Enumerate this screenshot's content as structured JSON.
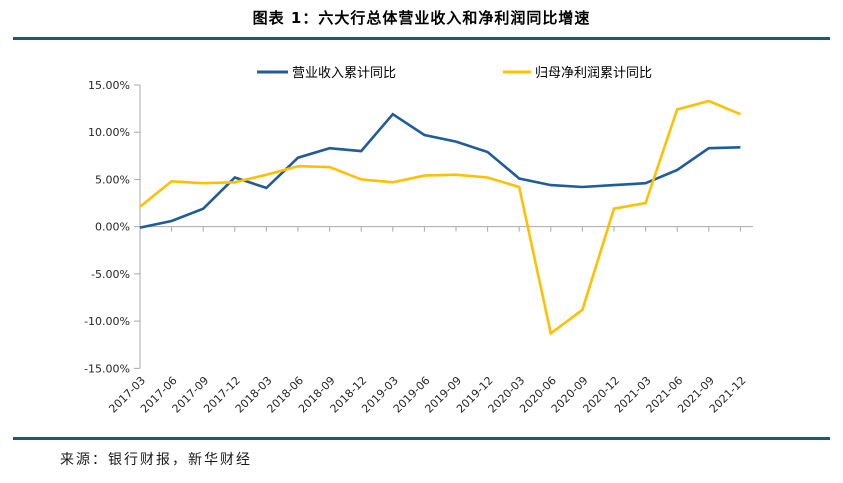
{
  "title": "图表 1：六大行总体营业收入和净利润同比增速",
  "source": "来源：银行财报，新华财经",
  "colors": {
    "accent_rule": "#215968",
    "revenue_line": "#1F5C99",
    "profit_line": "#FFC000",
    "axis": "#A8A8A8",
    "tick_text": "#262626"
  },
  "chart_data": {
    "type": "line",
    "categories": [
      "2017-03",
      "2017-06",
      "2017-09",
      "2017-12",
      "2018-03",
      "2018-06",
      "2018-09",
      "2018-12",
      "2019-03",
      "2019-06",
      "2019-09",
      "2019-12",
      "2020-03",
      "2020-06",
      "2020-09",
      "2020-12",
      "2021-03",
      "2021-06",
      "2021-09",
      "2021-12"
    ],
    "series": [
      {
        "name": "营业收入累计同比",
        "color": "#1F5C99",
        "values": [
          -0.1,
          0.6,
          1.9,
          5.2,
          4.1,
          7.3,
          8.3,
          8.0,
          11.9,
          9.7,
          9.0,
          7.9,
          5.1,
          4.4,
          4.2,
          4.4,
          4.6,
          6.0,
          8.3,
          8.4
        ]
      },
      {
        "name": "归母净利润累计同比",
        "color": "#FFC000",
        "values": [
          2.1,
          4.8,
          4.6,
          4.7,
          5.5,
          6.4,
          6.3,
          5.0,
          4.7,
          5.4,
          5.5,
          5.2,
          4.2,
          -11.3,
          -8.8,
          1.9,
          2.5,
          12.4,
          13.3,
          11.9
        ]
      }
    ],
    "ylim": [
      -15,
      15
    ],
    "ytick_step": 5,
    "ytick_labels": [
      "15.00%",
      "10.00%",
      "5.00%",
      "0.00%",
      "-5.00%",
      "-10.00%",
      "-15.00%"
    ],
    "grid": false,
    "legend_position": "top"
  }
}
